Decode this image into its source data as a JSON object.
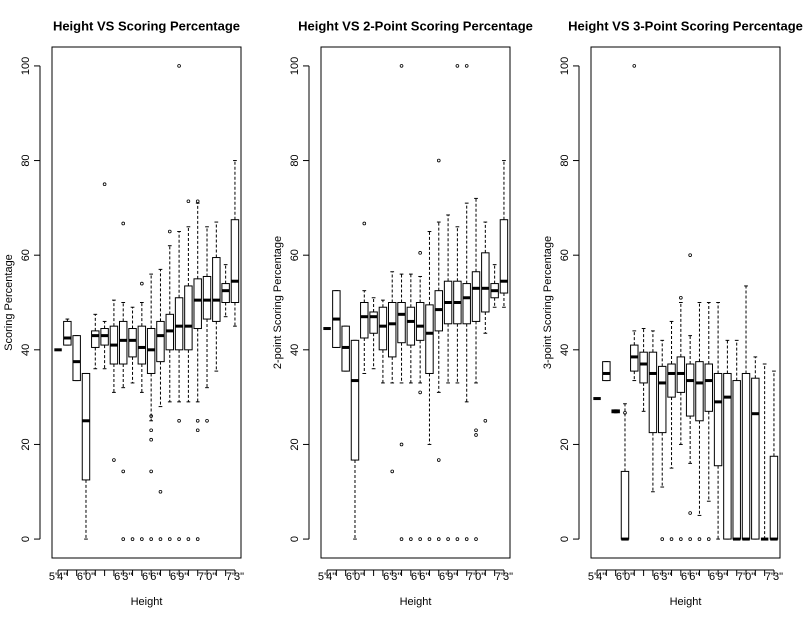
{
  "chart_data": [
    {
      "type": "boxplot",
      "title": "Height VS Scoring Percentage",
      "xlabel": "Height",
      "ylabel": "Scoring Percentage",
      "categories": [
        "5'4\"",
        null,
        null,
        "6'0\"",
        null,
        null,
        null,
        "6'3\"",
        null,
        null,
        "6'6\"",
        null,
        null,
        "6'9\"",
        null,
        null,
        "7'0\"",
        null,
        null,
        "7'3\""
      ],
      "ylim": [
        -4,
        104
      ],
      "yticks": [
        0,
        20,
        40,
        60,
        80,
        100
      ],
      "boxes": [
        {
          "whisker_low": 40,
          "q1": 40,
          "median": 40,
          "q3": 40,
          "whisker_high": 40,
          "outliers": []
        },
        {
          "whisker_low": 41,
          "q1": 41,
          "median": 42.5,
          "q3": 46,
          "whisker_high": 46.5,
          "outliers": []
        },
        {
          "whisker_low": 33.5,
          "q1": 33.5,
          "median": 37.5,
          "q3": 43,
          "whisker_high": 43,
          "outliers": []
        },
        {
          "whisker_low": 0,
          "q1": 12.5,
          "median": 25,
          "q3": 35,
          "whisker_high": 35,
          "outliers": []
        },
        {
          "whisker_low": 36,
          "q1": 40.5,
          "median": 43,
          "q3": 44,
          "whisker_high": 47.5,
          "outliers": []
        },
        {
          "whisker_low": 36,
          "q1": 41,
          "median": 43,
          "q3": 44.5,
          "whisker_high": 46,
          "outliers": [
            75
          ]
        },
        {
          "whisker_low": 31,
          "q1": 37,
          "median": 41,
          "q3": 45,
          "whisker_high": 50.5,
          "outliers": [
            16.7
          ]
        },
        {
          "whisker_low": 32,
          "q1": 37,
          "median": 42,
          "q3": 46,
          "whisker_high": 50,
          "outliers": [
            66.7,
            14.3,
            0
          ]
        },
        {
          "whisker_low": 33,
          "q1": 38.5,
          "median": 42,
          "q3": 44.5,
          "whisker_high": 49,
          "outliers": [
            0
          ]
        },
        {
          "whisker_low": 31,
          "q1": 37,
          "median": 40.5,
          "q3": 45,
          "whisker_high": 50,
          "outliers": [
            54,
            0
          ]
        },
        {
          "whisker_low": 25,
          "q1": 35,
          "median": 40,
          "q3": 44.5,
          "whisker_high": 56,
          "outliers": [
            26,
            23,
            21,
            14.3,
            0
          ]
        },
        {
          "whisker_low": 28,
          "q1": 37.5,
          "median": 43,
          "q3": 46,
          "whisker_high": 57,
          "outliers": [
            10,
            0
          ]
        },
        {
          "whisker_low": 29,
          "q1": 40,
          "median": 44,
          "q3": 47.5,
          "whisker_high": 62,
          "outliers": [
            65,
            0
          ]
        },
        {
          "whisker_low": 29,
          "q1": 40,
          "median": 45,
          "q3": 51,
          "whisker_high": 65,
          "outliers": [
            100,
            25,
            0
          ]
        },
        {
          "whisker_low": 29,
          "q1": 40,
          "median": 45,
          "q3": 53.5,
          "whisker_high": 66,
          "outliers": [
            71.4,
            0
          ]
        },
        {
          "whisker_low": 29,
          "q1": 44.5,
          "median": 50.5,
          "q3": 55,
          "whisker_high": 71,
          "outliers": [
            71.4,
            25,
            23,
            0
          ]
        },
        {
          "whisker_low": 32,
          "q1": 46.5,
          "median": 50.5,
          "q3": 55.5,
          "whisker_high": 66,
          "outliers": [
            25
          ]
        },
        {
          "whisker_low": 35.5,
          "q1": 46,
          "median": 50.5,
          "q3": 59.5,
          "whisker_high": 67,
          "outliers": []
        },
        {
          "whisker_low": 47,
          "q1": 50,
          "median": 52.5,
          "q3": 54,
          "whisker_high": 58,
          "outliers": []
        },
        {
          "whisker_low": 45,
          "q1": 50,
          "median": 54.5,
          "q3": 67.5,
          "whisker_high": 80,
          "outliers": []
        }
      ]
    },
    {
      "type": "boxplot",
      "title": "Height VS 2-Point Scoring Percentage",
      "xlabel": "Height",
      "ylabel": "2-point Scoring Percentage",
      "categories": [
        "5'4\"",
        null,
        null,
        "6'0\"",
        null,
        null,
        null,
        "6'3\"",
        null,
        null,
        "6'6\"",
        null,
        null,
        "6'9\"",
        null,
        null,
        "7'0\"",
        null,
        null,
        "7'3\""
      ],
      "ylim": [
        -4,
        104
      ],
      "yticks": [
        0,
        20,
        40,
        60,
        80,
        100
      ],
      "boxes": [
        {
          "whisker_low": 44.5,
          "q1": 44.5,
          "median": 44.5,
          "q3": 44.5,
          "whisker_high": 44.5,
          "outliers": []
        },
        {
          "whisker_low": 40.5,
          "q1": 40.5,
          "median": 46.5,
          "q3": 52.5,
          "whisker_high": 52.5,
          "outliers": []
        },
        {
          "whisker_low": 35.5,
          "q1": 35.5,
          "median": 40.5,
          "q3": 45,
          "whisker_high": 45,
          "outliers": []
        },
        {
          "whisker_low": 0,
          "q1": 16.7,
          "median": 33.5,
          "q3": 42,
          "whisker_high": 42,
          "outliers": []
        },
        {
          "whisker_low": 35,
          "q1": 42.5,
          "median": 47,
          "q3": 50,
          "whisker_high": 52.5,
          "outliers": [
            66.7
          ]
        },
        {
          "whisker_low": 36,
          "q1": 43.5,
          "median": 47,
          "q3": 48,
          "whisker_high": 51,
          "outliers": []
        },
        {
          "whisker_low": 33,
          "q1": 40,
          "median": 45,
          "q3": 49,
          "whisker_high": 50.5,
          "outliers": []
        },
        {
          "whisker_low": 33,
          "q1": 38.5,
          "median": 45.5,
          "q3": 50,
          "whisker_high": 56.5,
          "outliers": [
            14.3
          ]
        },
        {
          "whisker_low": 33,
          "q1": 41.5,
          "median": 47.5,
          "q3": 50,
          "whisker_high": 56,
          "outliers": [
            100,
            20,
            0
          ]
        },
        {
          "whisker_low": 33,
          "q1": 41,
          "median": 46,
          "q3": 49,
          "whisker_high": 56,
          "outliers": [
            0
          ]
        },
        {
          "whisker_low": 33,
          "q1": 42,
          "median": 45,
          "q3": 50,
          "whisker_high": 55.5,
          "outliers": [
            60.5,
            31,
            0
          ]
        },
        {
          "whisker_low": 20,
          "q1": 35,
          "median": 43.5,
          "q3": 49.5,
          "whisker_high": 65,
          "outliers": [
            0
          ]
        },
        {
          "whisker_low": 31,
          "q1": 44,
          "median": 48.5,
          "q3": 52.5,
          "whisker_high": 67,
          "outliers": [
            80,
            16.7,
            0
          ]
        },
        {
          "whisker_low": 33,
          "q1": 45.5,
          "median": 50,
          "q3": 54.5,
          "whisker_high": 68.5,
          "outliers": [
            0
          ]
        },
        {
          "whisker_low": 33,
          "q1": 45.5,
          "median": 50,
          "q3": 54.5,
          "whisker_high": 66,
          "outliers": [
            100,
            0
          ]
        },
        {
          "whisker_low": 29,
          "q1": 45.5,
          "median": 51,
          "q3": 54,
          "whisker_high": 71,
          "outliers": [
            100,
            0
          ]
        },
        {
          "whisker_low": 33,
          "q1": 46,
          "median": 53,
          "q3": 56.5,
          "whisker_high": 72,
          "outliers": [
            23,
            22,
            0
          ]
        },
        {
          "whisker_low": 43.5,
          "q1": 48,
          "median": 53,
          "q3": 60.5,
          "whisker_high": 67,
          "outliers": [
            25
          ]
        },
        {
          "whisker_low": 49,
          "q1": 51,
          "median": 52.5,
          "q3": 54,
          "whisker_high": 58,
          "outliers": []
        },
        {
          "whisker_low": 49,
          "q1": 52,
          "median": 54.5,
          "q3": 67.5,
          "whisker_high": 80,
          "outliers": []
        }
      ]
    },
    {
      "type": "boxplot",
      "title": "Height VS 3-Point Scoring Percentage",
      "xlabel": "Height",
      "ylabel": "3-point Scoring Percentage",
      "categories": [
        "5'4\"",
        null,
        null,
        "6'0\"",
        null,
        null,
        null,
        "6'3\"",
        null,
        null,
        "6'6\"",
        null,
        null,
        "6'9\"",
        null,
        null,
        "7'0\"",
        null,
        null,
        "7'3\""
      ],
      "ylim": [
        -4,
        104
      ],
      "yticks": [
        0,
        20,
        40,
        60,
        80,
        100
      ],
      "boxes": [
        {
          "whisker_low": 29.7,
          "q1": 29.7,
          "median": 29.7,
          "q3": 29.7,
          "whisker_high": 29.7,
          "outliers": []
        },
        {
          "whisker_low": 33.5,
          "q1": 33.5,
          "median": 35,
          "q3": 37.5,
          "whisker_high": 37.5,
          "outliers": []
        },
        {
          "whisker_low": 26.7,
          "q1": 26.7,
          "median": 27,
          "q3": 27.3,
          "whisker_high": 27.3,
          "outliers": []
        },
        {
          "whisker_low": 0,
          "q1": 0,
          "median": 0,
          "q3": 14.3,
          "whisker_high": 28.6,
          "outliers": [
            26.7
          ]
        },
        {
          "whisker_low": 33.5,
          "q1": 35.5,
          "median": 38.5,
          "q3": 41,
          "whisker_high": 44,
          "outliers": [
            100
          ]
        },
        {
          "whisker_low": 27,
          "q1": 33,
          "median": 37,
          "q3": 39.5,
          "whisker_high": 44.5,
          "outliers": []
        },
        {
          "whisker_low": 10,
          "q1": 22.5,
          "median": 35,
          "q3": 39.5,
          "whisker_high": 44,
          "outliers": []
        },
        {
          "whisker_low": 11,
          "q1": 22.5,
          "median": 33,
          "q3": 36.5,
          "whisker_high": 42,
          "outliers": [
            0
          ]
        },
        {
          "whisker_low": 15,
          "q1": 30,
          "median": 35,
          "q3": 37,
          "whisker_high": 46,
          "outliers": [
            0
          ]
        },
        {
          "whisker_low": 20,
          "q1": 31,
          "median": 35,
          "q3": 38.5,
          "whisker_high": 50,
          "outliers": [
            51,
            0
          ]
        },
        {
          "whisker_low": 16,
          "q1": 26,
          "median": 33.5,
          "q3": 37,
          "whisker_high": 43,
          "outliers": [
            60,
            5.5,
            0
          ]
        },
        {
          "whisker_low": 5,
          "q1": 25,
          "median": 33,
          "q3": 37.5,
          "whisker_high": 50,
          "outliers": [
            0
          ]
        },
        {
          "whisker_low": 8,
          "q1": 27,
          "median": 33.5,
          "q3": 37,
          "whisker_high": 50,
          "outliers": [
            0
          ]
        },
        {
          "whisker_low": 0,
          "q1": 15.5,
          "median": 29,
          "q3": 35,
          "whisker_high": 50,
          "outliers": []
        },
        {
          "whisker_low": 0,
          "q1": 0,
          "median": 30,
          "q3": 35,
          "whisker_high": 42,
          "outliers": []
        },
        {
          "whisker_low": 0,
          "q1": 0,
          "median": 0,
          "q3": 33.5,
          "whisker_high": 42,
          "outliers": []
        },
        {
          "whisker_low": 0,
          "q1": 0,
          "median": 0,
          "q3": 35,
          "whisker_high": 53.5,
          "outliers": []
        },
        {
          "whisker_low": 0,
          "q1": 0,
          "median": 26.5,
          "q3": 34,
          "whisker_high": 38.5,
          "outliers": []
        },
        {
          "whisker_low": 0,
          "q1": 0,
          "median": 0,
          "q3": 0,
          "whisker_high": 37,
          "outliers": []
        },
        {
          "whisker_low": 0,
          "q1": 0,
          "median": 0,
          "q3": 17.5,
          "whisker_high": 35.5,
          "outliers": []
        }
      ]
    }
  ]
}
